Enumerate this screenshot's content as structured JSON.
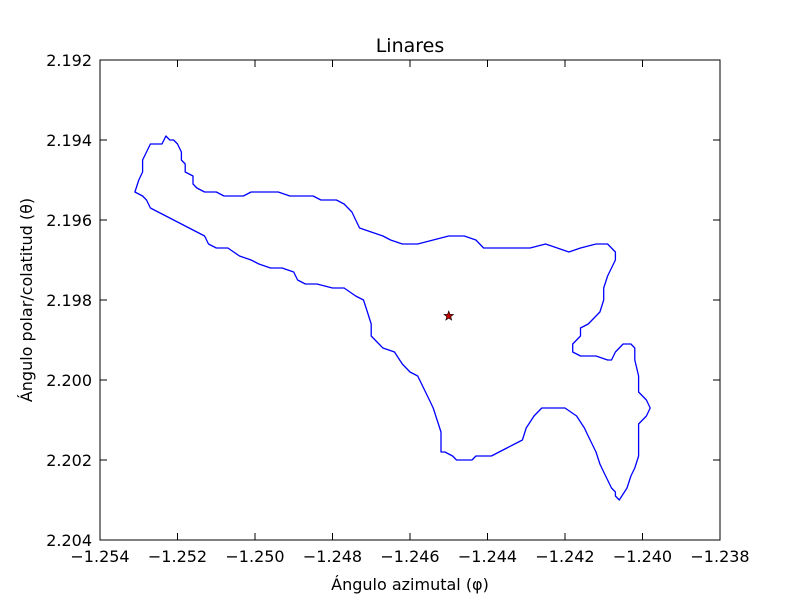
{
  "chart_data": {
    "type": "line",
    "title": "Linares",
    "xlabel": "Ángulo azimutal (φ)",
    "ylabel": "Ángulo polar/colatitud (θ)",
    "xlim": [
      -1.254,
      -1.238
    ],
    "ylim": [
      2.192,
      2.204
    ],
    "y_axis_inverted": true,
    "x_ticks": [
      "−1.254",
      "−1.252",
      "−1.250",
      "−1.248",
      "−1.246",
      "−1.244",
      "−1.242",
      "−1.240",
      "−1.238"
    ],
    "y_ticks": [
      "2.192",
      "2.194",
      "2.196",
      "2.198",
      "2.200",
      "2.202",
      "2.204"
    ],
    "grid": false,
    "series": [
      {
        "kind": "boundary",
        "color": "#0000ff",
        "points": [
          [
            -1.2531,
            2.1953
          ],
          [
            -1.253,
            2.195
          ],
          [
            -1.2529,
            2.1948
          ],
          [
            -1.2529,
            2.1945
          ],
          [
            -1.2528,
            2.1943
          ],
          [
            -1.2527,
            2.1941
          ],
          [
            -1.2524,
            2.1941
          ],
          [
            -1.2523,
            2.1939
          ],
          [
            -1.2522,
            2.194
          ],
          [
            -1.2521,
            2.194
          ],
          [
            -1.252,
            2.1941
          ],
          [
            -1.2519,
            2.1943
          ],
          [
            -1.2519,
            2.1945
          ],
          [
            -1.2518,
            2.1946
          ],
          [
            -1.2518,
            2.1948
          ],
          [
            -1.2516,
            2.1949
          ],
          [
            -1.2516,
            2.1951
          ],
          [
            -1.2515,
            2.1952
          ],
          [
            -1.2513,
            2.1953
          ],
          [
            -1.251,
            2.1953
          ],
          [
            -1.2508,
            2.1954
          ],
          [
            -1.2505,
            2.1954
          ],
          [
            -1.2503,
            2.1954
          ],
          [
            -1.2501,
            2.1953
          ],
          [
            -1.2497,
            2.1953
          ],
          [
            -1.2494,
            2.1953
          ],
          [
            -1.2491,
            2.1954
          ],
          [
            -1.2488,
            2.1954
          ],
          [
            -1.2485,
            2.1954
          ],
          [
            -1.2483,
            2.1955
          ],
          [
            -1.2481,
            2.1955
          ],
          [
            -1.2479,
            2.1955
          ],
          [
            -1.2477,
            2.1956
          ],
          [
            -1.2475,
            2.1958
          ],
          [
            -1.2474,
            2.196
          ],
          [
            -1.2473,
            2.1962
          ],
          [
            -1.247,
            2.1963
          ],
          [
            -1.2467,
            2.1964
          ],
          [
            -1.2465,
            2.1965
          ],
          [
            -1.2462,
            2.1966
          ],
          [
            -1.2458,
            2.1966
          ],
          [
            -1.2454,
            2.1965
          ],
          [
            -1.245,
            2.1964
          ],
          [
            -1.2446,
            2.1964
          ],
          [
            -1.2443,
            2.1965
          ],
          [
            -1.2441,
            2.1967
          ],
          [
            -1.2438,
            2.1967
          ],
          [
            -1.2433,
            2.1967
          ],
          [
            -1.2429,
            2.1967
          ],
          [
            -1.2425,
            2.1966
          ],
          [
            -1.2422,
            2.1967
          ],
          [
            -1.2419,
            2.1968
          ],
          [
            -1.2416,
            2.1967
          ],
          [
            -1.2412,
            2.1966
          ],
          [
            -1.2409,
            2.1966
          ],
          [
            -1.2407,
            2.1968
          ],
          [
            -1.2407,
            2.197
          ],
          [
            -1.2408,
            2.1972
          ],
          [
            -1.2409,
            2.1974
          ],
          [
            -1.241,
            2.1977
          ],
          [
            -1.241,
            2.198
          ],
          [
            -1.2411,
            2.1983
          ],
          [
            -1.2414,
            2.1986
          ],
          [
            -1.2416,
            2.1987
          ],
          [
            -1.2416,
            2.1989
          ],
          [
            -1.2418,
            2.1991
          ],
          [
            -1.2418,
            2.1993
          ],
          [
            -1.2416,
            2.1994
          ],
          [
            -1.2412,
            2.1994
          ],
          [
            -1.2409,
            2.1995
          ],
          [
            -1.2408,
            2.1995
          ],
          [
            -1.2407,
            2.1993
          ],
          [
            -1.2406,
            2.1992
          ],
          [
            -1.2405,
            2.1991
          ],
          [
            -1.2403,
            2.1991
          ],
          [
            -1.2402,
            2.1992
          ],
          [
            -1.2402,
            2.1995
          ],
          [
            -1.2401,
            2.1999
          ],
          [
            -1.2401,
            2.2003
          ],
          [
            -1.2399,
            2.2005
          ],
          [
            -1.2398,
            2.2007
          ],
          [
            -1.2399,
            2.2009
          ],
          [
            -1.2401,
            2.2011
          ],
          [
            -1.2401,
            2.2013
          ],
          [
            -1.2401,
            2.2015
          ],
          [
            -1.2401,
            2.2019
          ],
          [
            -1.2402,
            2.2022
          ],
          [
            -1.2403,
            2.2024
          ],
          [
            -1.2404,
            2.2027
          ],
          [
            -1.2406,
            2.203
          ],
          [
            -1.2407,
            2.2029
          ],
          [
            -1.2407,
            2.2028
          ],
          [
            -1.2408,
            2.2027
          ],
          [
            -1.2409,
            2.2025
          ],
          [
            -1.241,
            2.2023
          ],
          [
            -1.2411,
            2.2021
          ],
          [
            -1.2412,
            2.2018
          ],
          [
            -1.2414,
            2.2014
          ],
          [
            -1.2415,
            2.2012
          ],
          [
            -1.2417,
            2.2009
          ],
          [
            -1.242,
            2.2007
          ],
          [
            -1.2423,
            2.2007
          ],
          [
            -1.2426,
            2.2007
          ],
          [
            -1.2428,
            2.2009
          ],
          [
            -1.243,
            2.2012
          ],
          [
            -1.2431,
            2.2015
          ],
          [
            -1.2433,
            2.2016
          ],
          [
            -1.2435,
            2.2017
          ],
          [
            -1.2437,
            2.2018
          ],
          [
            -1.2439,
            2.2019
          ],
          [
            -1.2441,
            2.2019
          ],
          [
            -1.2443,
            2.2019
          ],
          [
            -1.2444,
            2.202
          ],
          [
            -1.2446,
            2.202
          ],
          [
            -1.2448,
            2.202
          ],
          [
            -1.2449,
            2.2019
          ],
          [
            -1.2451,
            2.2018
          ],
          [
            -1.2452,
            2.2018
          ],
          [
            -1.2452,
            2.2016
          ],
          [
            -1.2452,
            2.2013
          ],
          [
            -1.2453,
            2.201
          ],
          [
            -1.2454,
            2.2007
          ],
          [
            -1.2455,
            2.2005
          ],
          [
            -1.2456,
            2.2003
          ],
          [
            -1.2457,
            2.2001
          ],
          [
            -1.2458,
            2.1999
          ],
          [
            -1.246,
            2.1998
          ],
          [
            -1.2462,
            2.1996
          ],
          [
            -1.2464,
            2.1993
          ],
          [
            -1.2467,
            2.1992
          ],
          [
            -1.2468,
            2.1991
          ],
          [
            -1.247,
            2.1989
          ],
          [
            -1.247,
            2.1986
          ],
          [
            -1.2471,
            2.1983
          ],
          [
            -1.2472,
            2.198
          ],
          [
            -1.2474,
            2.1979
          ],
          [
            -1.2477,
            2.1977
          ],
          [
            -1.248,
            2.1977
          ],
          [
            -1.2484,
            2.1976
          ],
          [
            -1.2487,
            2.1976
          ],
          [
            -1.2489,
            2.1975
          ],
          [
            -1.249,
            2.1973
          ],
          [
            -1.2493,
            2.1972
          ],
          [
            -1.2496,
            2.1972
          ],
          [
            -1.2499,
            2.1971
          ],
          [
            -1.2501,
            2.197
          ],
          [
            -1.2504,
            2.1969
          ],
          [
            -1.2507,
            2.1967
          ],
          [
            -1.251,
            2.1967
          ],
          [
            -1.2512,
            2.1966
          ],
          [
            -1.2513,
            2.1964
          ],
          [
            -1.2515,
            2.1963
          ],
          [
            -1.2517,
            2.1962
          ],
          [
            -1.2519,
            2.1961
          ],
          [
            -1.2521,
            2.196
          ],
          [
            -1.2523,
            2.1959
          ],
          [
            -1.2525,
            2.1958
          ],
          [
            -1.2527,
            2.1957
          ],
          [
            -1.2528,
            2.1955
          ],
          [
            -1.2529,
            2.1954
          ],
          [
            -1.2531,
            2.1953
          ]
        ]
      },
      {
        "kind": "marker",
        "marker": "star",
        "color": "#c00000",
        "points": [
          [
            -1.245,
            2.1984
          ]
        ]
      }
    ]
  }
}
